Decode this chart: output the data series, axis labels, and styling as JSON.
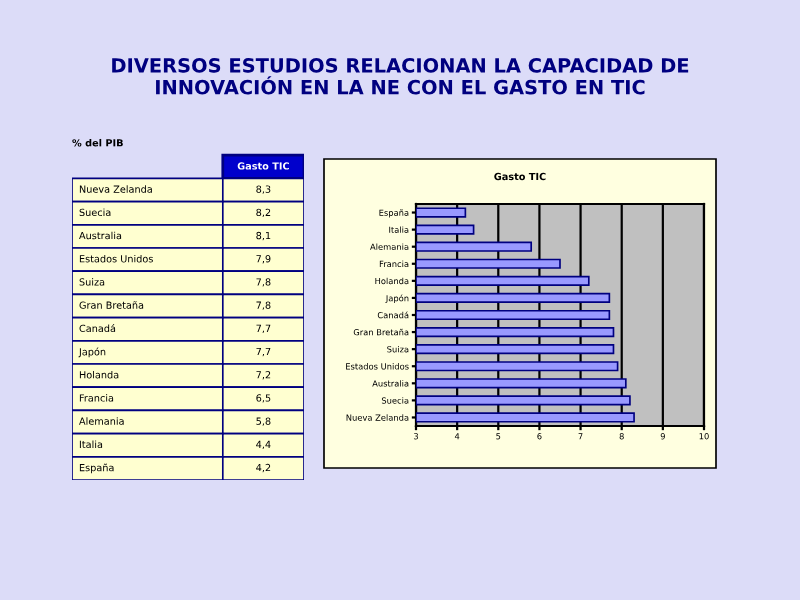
{
  "chart_data": [
    {
      "type": "other",
      "title": "DIVERSOS ESTUDIOS RELACIONAN LA CAPACIDAD DE\nINNOVACIÓN EN LA NE CON EL GASTO EN TIC",
      "subtitle": "Gasto TIC",
      "annotations": [
        "% del PIB"
      ],
      "categories": [
        "Nueva Zelanda",
        "Suecia",
        "Australia",
        "Estados Unidos",
        "Suiza",
        "Gran Bretaña",
        "Canadá",
        "Japón",
        "Holanda",
        "Francia",
        "Alemania",
        "Italia",
        "España"
      ],
      "values": [
        8.3,
        8.2,
        8.1,
        7.9,
        7.8,
        7.8,
        7.7,
        7.7,
        7.2,
        6.5,
        5.8,
        4.4,
        4.2
      ],
      "value_labels": [
        "8,3",
        "8,2",
        "8,1",
        "7,9",
        "7,8",
        "7,8",
        "7,7",
        "7,7",
        "7,2",
        "6,5",
        "5,8",
        "4,4",
        "4,2"
      ]
    },
    {
      "type": "bar",
      "orientation": "horizontal",
      "title": "Gasto TIC",
      "categories": [
        "España",
        "Italia",
        "Alemania",
        "Francia",
        "Holanda",
        "Japón",
        "Canadá",
        "Gran Bretaña",
        "Suiza",
        "Estados Unidos",
        "Australia",
        "Suecia",
        "Nueva Zelanda"
      ],
      "values": [
        4.2,
        4.4,
        5.8,
        6.5,
        7.2,
        7.7,
        7.7,
        7.8,
        7.8,
        7.9,
        8.1,
        8.2,
        8.3
      ],
      "color": "#9999ff",
      "xlim": [
        3,
        10
      ],
      "xticks": [
        3,
        4,
        5,
        6,
        7,
        8,
        9,
        10
      ],
      "grid": "x"
    }
  ]
}
